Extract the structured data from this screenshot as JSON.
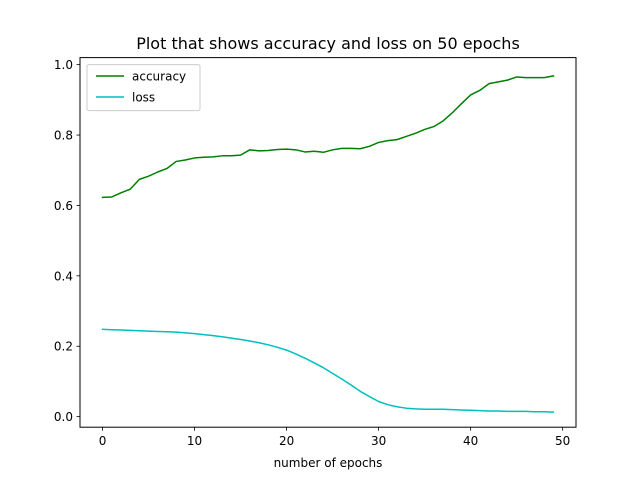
{
  "chart_data": {
    "type": "line",
    "title": "Plot that shows accuracy and loss on 50 epochs",
    "xlabel": "number of epochs",
    "ylabel": "",
    "xlim": [
      -2.45,
      51.45
    ],
    "ylim": [
      -0.03,
      1.02
    ],
    "xticks": [
      0,
      10,
      20,
      30,
      40,
      50
    ],
    "yticks": [
      0.0,
      0.2,
      0.4,
      0.6,
      0.8,
      1.0
    ],
    "xtick_labels": [
      "0",
      "10",
      "20",
      "30",
      "40",
      "50"
    ],
    "ytick_labels": [
      "0.0",
      "0.2",
      "0.4",
      "0.6",
      "0.8",
      "1.0"
    ],
    "grid": false,
    "legend_position": "top-left",
    "x": [
      0,
      1,
      2,
      3,
      4,
      5,
      6,
      7,
      8,
      9,
      10,
      11,
      12,
      13,
      14,
      15,
      16,
      17,
      18,
      19,
      20,
      21,
      22,
      23,
      24,
      25,
      26,
      27,
      28,
      29,
      30,
      31,
      32,
      33,
      34,
      35,
      36,
      37,
      38,
      39,
      40,
      41,
      42,
      43,
      44,
      45,
      46,
      47,
      48,
      49
    ],
    "series": [
      {
        "name": "accuracy",
        "color": "#008000",
        "values": [
          0.623,
          0.624,
          0.636,
          0.646,
          0.674,
          0.683,
          0.695,
          0.705,
          0.725,
          0.729,
          0.735,
          0.737,
          0.738,
          0.741,
          0.741,
          0.743,
          0.758,
          0.755,
          0.756,
          0.759,
          0.76,
          0.758,
          0.752,
          0.754,
          0.751,
          0.758,
          0.762,
          0.762,
          0.761,
          0.768,
          0.779,
          0.784,
          0.787,
          0.796,
          0.805,
          0.816,
          0.824,
          0.84,
          0.863,
          0.889,
          0.914,
          0.927,
          0.946,
          0.951,
          0.956,
          0.965,
          0.963,
          0.963,
          0.963,
          0.968
        ]
      },
      {
        "name": "loss",
        "color": "#00bfbf",
        "values": [
          0.248,
          0.247,
          0.246,
          0.245,
          0.244,
          0.243,
          0.242,
          0.241,
          0.24,
          0.238,
          0.236,
          0.233,
          0.23,
          0.227,
          0.223,
          0.219,
          0.215,
          0.21,
          0.204,
          0.197,
          0.189,
          0.178,
          0.166,
          0.153,
          0.139,
          0.123,
          0.107,
          0.09,
          0.072,
          0.057,
          0.043,
          0.034,
          0.028,
          0.024,
          0.022,
          0.021,
          0.021,
          0.021,
          0.02,
          0.019,
          0.018,
          0.017,
          0.016,
          0.016,
          0.015,
          0.015,
          0.015,
          0.014,
          0.014,
          0.013
        ]
      }
    ]
  }
}
